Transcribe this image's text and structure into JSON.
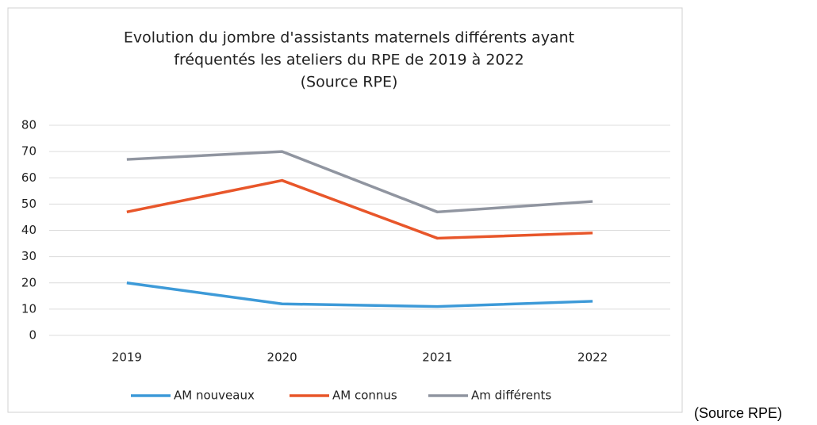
{
  "chart_data": {
    "type": "line",
    "title": [
      "Evolution du jombre d'assistants maternels différents ayant",
      "fréquentés les ateliers du RPE de 2019 à 2022",
      "(Source RPE)"
    ],
    "categories": [
      "2019",
      "2020",
      "2021",
      "2022"
    ],
    "series": [
      {
        "name": "AM nouveaux",
        "color": "#3d9ad8",
        "values": [
          20,
          12,
          11,
          13
        ]
      },
      {
        "name": "AM connus",
        "color": "#e8562a",
        "values": [
          47,
          59,
          37,
          39
        ]
      },
      {
        "name": "Am différents",
        "color": "#9095a0",
        "values": [
          67,
          70,
          47,
          51
        ]
      }
    ],
    "ylim": [
      0,
      80
    ],
    "yticks": [
      0,
      10,
      20,
      30,
      40,
      50,
      60,
      70,
      80
    ],
    "grid": true,
    "legend": "bottom"
  },
  "caption": "(Source RPE)"
}
